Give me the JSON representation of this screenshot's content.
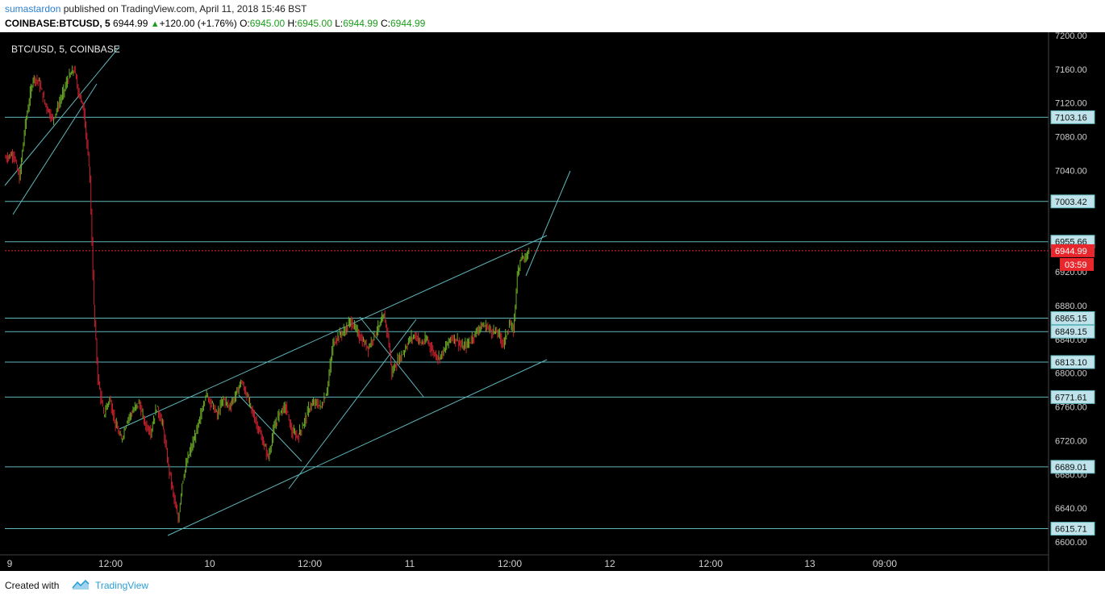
{
  "header": {
    "author": "sumastardon",
    "published_text": "published on TradingView.com, April 11, 2018 15:46 BST",
    "symbol_text": "COINBASE:BTCUSD, 5",
    "last": "6944.99",
    "change": "+120.00 (+1.76%)",
    "o_label": "O:",
    "o_value": "6945.00",
    "h_label": "H:",
    "h_value": "6945.00",
    "l_label": "L:",
    "l_value": "6944.99",
    "c_label": "C:",
    "c_value": "6944.99"
  },
  "footer": {
    "created_with": "Created with",
    "brand": "TradingView"
  },
  "chart_data": {
    "type": "candlestick",
    "title": "BTC/USD, 5, COINBASE",
    "y_ticks": [
      "7200.00",
      "7160.00",
      "7120.00",
      "7080.00",
      "7040.00",
      "6920.00",
      "6880.00",
      "6840.00",
      "6800.00",
      "6760.00",
      "6720.00",
      "6680.00",
      "6640.00",
      "6600.00"
    ],
    "x_ticks": [
      "9",
      "12:00",
      "10",
      "12:00",
      "11",
      "12:00",
      "12",
      "12:00",
      "13",
      "09:00"
    ],
    "levels": [
      7103.16,
      7003.42,
      6955.66,
      6865.15,
      6849.15,
      6813.1,
      6771.61,
      6689.01,
      6615.71
    ],
    "level_labels": [
      "7103.16",
      "7003.42",
      "6955.66",
      "6865.15",
      "6849.15",
      "6813.10",
      "6771.61",
      "6689.01",
      "6615.71"
    ],
    "current_price": "6944.99",
    "countdown": "03:59",
    "colors": {
      "up": "#6aaa24",
      "down": "#c8202d",
      "lines": "#5fb6bb",
      "current": "#e8262b"
    },
    "anchors": [
      [
        0,
        7055
      ],
      [
        8,
        7060
      ],
      [
        14,
        7030
      ],
      [
        20,
        7095
      ],
      [
        28,
        7150
      ],
      [
        34,
        7145
      ],
      [
        40,
        7120
      ],
      [
        48,
        7100
      ],
      [
        58,
        7130
      ],
      [
        64,
        7150
      ],
      [
        70,
        7160
      ],
      [
        74,
        7135
      ],
      [
        80,
        7110
      ],
      [
        86,
        7030
      ],
      [
        90,
        6880
      ],
      [
        94,
        6795
      ],
      [
        100,
        6750
      ],
      [
        106,
        6770
      ],
      [
        112,
        6740
      ],
      [
        118,
        6720
      ],
      [
        124,
        6745
      ],
      [
        130,
        6755
      ],
      [
        136,
        6765
      ],
      [
        142,
        6740
      ],
      [
        148,
        6730
      ],
      [
        154,
        6760
      ],
      [
        160,
        6740
      ],
      [
        166,
        6690
      ],
      [
        172,
        6650
      ],
      [
        176,
        6625
      ],
      [
        180,
        6670
      ],
      [
        186,
        6700
      ],
      [
        192,
        6720
      ],
      [
        198,
        6745
      ],
      [
        204,
        6775
      ],
      [
        210,
        6765
      ],
      [
        216,
        6750
      ],
      [
        222,
        6770
      ],
      [
        228,
        6760
      ],
      [
        234,
        6772
      ],
      [
        240,
        6790
      ],
      [
        244,
        6780
      ],
      [
        250,
        6760
      ],
      [
        256,
        6740
      ],
      [
        262,
        6720
      ],
      [
        268,
        6700
      ],
      [
        274,
        6735
      ],
      [
        280,
        6755
      ],
      [
        286,
        6760
      ],
      [
        292,
        6730
      ],
      [
        298,
        6725
      ],
      [
        304,
        6740
      ],
      [
        310,
        6760
      ],
      [
        316,
        6765
      ],
      [
        322,
        6760
      ],
      [
        328,
        6780
      ],
      [
        334,
        6835
      ],
      [
        340,
        6845
      ],
      [
        346,
        6850
      ],
      [
        352,
        6862
      ],
      [
        358,
        6850
      ],
      [
        364,
        6838
      ],
      [
        370,
        6830
      ],
      [
        376,
        6845
      ],
      [
        382,
        6857
      ],
      [
        386,
        6868
      ],
      [
        390,
        6845
      ],
      [
        394,
        6800
      ],
      [
        400,
        6815
      ],
      [
        406,
        6825
      ],
      [
        412,
        6840
      ],
      [
        418,
        6845
      ],
      [
        424,
        6835
      ],
      [
        430,
        6840
      ],
      [
        436,
        6825
      ],
      [
        442,
        6818
      ],
      [
        448,
        6828
      ],
      [
        454,
        6842
      ],
      [
        460,
        6840
      ],
      [
        466,
        6830
      ],
      [
        472,
        6835
      ],
      [
        478,
        6845
      ],
      [
        484,
        6855
      ],
      [
        490,
        6856
      ],
      [
        496,
        6850
      ],
      [
        502,
        6848
      ],
      [
        508,
        6835
      ],
      [
        514,
        6858
      ],
      [
        518,
        6850
      ],
      [
        522,
        6915
      ],
      [
        526,
        6940
      ],
      [
        530,
        6935
      ],
      [
        534,
        6945
      ]
    ]
  }
}
